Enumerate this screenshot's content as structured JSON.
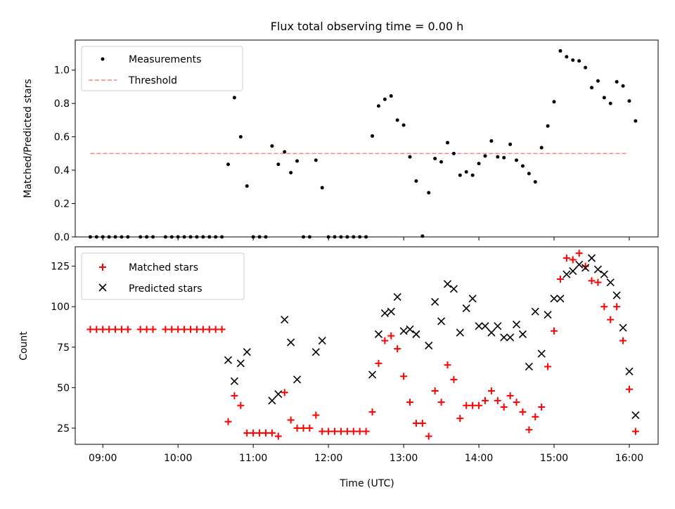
{
  "chart_data": [
    {
      "type": "scatter",
      "title": "Flux total observing time = 0.00 h",
      "xlabel": "",
      "ylabel": "Matched/Predicted stars",
      "xlim": [
        "08:38",
        "16:23"
      ],
      "ylim": [
        0.0,
        1.18
      ],
      "yticks": [
        0.0,
        0.2,
        0.4,
        0.6,
        0.8,
        1.0
      ],
      "grid": false,
      "legend": {
        "placement": "top-left",
        "entries": [
          "Measurements",
          "Threshold"
        ]
      },
      "threshold": {
        "name": "Threshold",
        "value": 0.5,
        "x_start": "08:50",
        "x_end": "15:58",
        "color": "#ff7f7f"
      },
      "series": [
        {
          "name": "Measurements",
          "color": "#000000",
          "points": [
            [
              "08:50",
              0
            ],
            [
              "08:55",
              0
            ],
            [
              "09:00",
              0
            ],
            [
              "09:05",
              0
            ],
            [
              "09:10",
              0
            ],
            [
              "09:15",
              0
            ],
            [
              "09:20",
              0
            ],
            [
              "09:30",
              0
            ],
            [
              "09:35",
              0
            ],
            [
              "09:40",
              0
            ],
            [
              "09:50",
              0
            ],
            [
              "09:55",
              0
            ],
            [
              "10:00",
              0
            ],
            [
              "10:05",
              0
            ],
            [
              "10:10",
              0
            ],
            [
              "10:15",
              0
            ],
            [
              "10:20",
              0
            ],
            [
              "10:25",
              0
            ],
            [
              "10:30",
              0
            ],
            [
              "10:35",
              0
            ],
            [
              "10:40",
              0.435
            ],
            [
              "10:45",
              0.835
            ],
            [
              "10:50",
              0.6
            ],
            [
              "10:55",
              0.305
            ],
            [
              "11:00",
              0
            ],
            [
              "11:05",
              0
            ],
            [
              "11:10",
              0
            ],
            [
              "11:15",
              0.545
            ],
            [
              "11:20",
              0.435
            ],
            [
              "11:25",
              0.51
            ],
            [
              "11:30",
              0.385
            ],
            [
              "11:35",
              0.455
            ],
            [
              "11:40",
              0
            ],
            [
              "11:45",
              0
            ],
            [
              "11:50",
              0.46
            ],
            [
              "11:55",
              0.295
            ],
            [
              "12:00",
              0
            ],
            [
              "12:05",
              0
            ],
            [
              "12:10",
              0
            ],
            [
              "12:15",
              0
            ],
            [
              "12:20",
              0
            ],
            [
              "12:25",
              0
            ],
            [
              "12:30",
              0
            ],
            [
              "12:35",
              0.605
            ],
            [
              "12:40",
              0.785
            ],
            [
              "12:45",
              0.825
            ],
            [
              "12:50",
              0.845
            ],
            [
              "12:55",
              0.7
            ],
            [
              "13:00",
              0.67
            ],
            [
              "13:05",
              0.48
            ],
            [
              "13:10",
              0.335
            ],
            [
              "13:15",
              0.005
            ],
            [
              "13:20",
              0.265
            ],
            [
              "13:25",
              0.47
            ],
            [
              "13:30",
              0.45
            ],
            [
              "13:35",
              0.565
            ],
            [
              "13:40",
              0.5
            ],
            [
              "13:45",
              0.37
            ],
            [
              "13:50",
              0.39
            ],
            [
              "13:55",
              0.37
            ],
            [
              "14:00",
              0.44
            ],
            [
              "14:05",
              0.485
            ],
            [
              "14:10",
              0.575
            ],
            [
              "14:15",
              0.48
            ],
            [
              "14:20",
              0.475
            ],
            [
              "14:25",
              0.555
            ],
            [
              "14:30",
              0.46
            ],
            [
              "14:35",
              0.425
            ],
            [
              "14:40",
              0.38
            ],
            [
              "14:45",
              0.33
            ],
            [
              "14:50",
              0.535
            ],
            [
              "14:55",
              0.665
            ],
            [
              "15:00",
              0.81
            ],
            [
              "15:05",
              1.115
            ],
            [
              "15:10",
              1.08
            ],
            [
              "15:15",
              1.06
            ],
            [
              "15:20",
              1.055
            ],
            [
              "15:25",
              1.015
            ],
            [
              "15:30",
              0.895
            ],
            [
              "15:35",
              0.935
            ],
            [
              "15:40",
              0.835
            ],
            [
              "15:45",
              0.8
            ],
            [
              "15:50",
              0.93
            ],
            [
              "15:55",
              0.905
            ],
            [
              "16:00",
              0.815
            ],
            [
              "16:05",
              0.695
            ]
          ]
        }
      ]
    },
    {
      "type": "scatter",
      "title": "",
      "xlabel": "Time (UTC)",
      "ylabel": "Count",
      "xlim": [
        "08:38",
        "16:23"
      ],
      "ylim": [
        15,
        137
      ],
      "yticks": [
        25,
        50,
        75,
        100,
        125
      ],
      "xticks": [
        "09:00",
        "10:00",
        "11:00",
        "12:00",
        "13:00",
        "14:00",
        "15:00",
        "16:00"
      ],
      "grid": false,
      "legend": {
        "placement": "top-left",
        "entries": [
          "Matched stars",
          "Predicted stars"
        ]
      },
      "series": [
        {
          "name": "Matched stars",
          "marker": "plus",
          "color": "#ff0000",
          "points": [
            [
              "08:50",
              86
            ],
            [
              "08:55",
              86
            ],
            [
              "09:00",
              86
            ],
            [
              "09:05",
              86
            ],
            [
              "09:10",
              86
            ],
            [
              "09:15",
              86
            ],
            [
              "09:20",
              86
            ],
            [
              "09:30",
              86
            ],
            [
              "09:35",
              86
            ],
            [
              "09:40",
              86
            ],
            [
              "09:50",
              86
            ],
            [
              "09:55",
              86
            ],
            [
              "10:00",
              86
            ],
            [
              "10:05",
              86
            ],
            [
              "10:10",
              86
            ],
            [
              "10:15",
              86
            ],
            [
              "10:20",
              86
            ],
            [
              "10:25",
              86
            ],
            [
              "10:30",
              86
            ],
            [
              "10:35",
              86
            ],
            [
              "10:40",
              29
            ],
            [
              "10:45",
              45
            ],
            [
              "10:50",
              39
            ],
            [
              "10:55",
              22
            ],
            [
              "11:00",
              22
            ],
            [
              "11:05",
              22
            ],
            [
              "11:10",
              22
            ],
            [
              "11:15",
              22
            ],
            [
              "11:20",
              20
            ],
            [
              "11:25",
              47
            ],
            [
              "11:30",
              30
            ],
            [
              "11:35",
              25
            ],
            [
              "11:40",
              25
            ],
            [
              "11:45",
              25
            ],
            [
              "11:50",
              33
            ],
            [
              "11:55",
              23
            ],
            [
              "12:00",
              23
            ],
            [
              "12:05",
              23
            ],
            [
              "12:10",
              23
            ],
            [
              "12:15",
              23
            ],
            [
              "12:20",
              23
            ],
            [
              "12:25",
              23
            ],
            [
              "12:30",
              23
            ],
            [
              "12:35",
              35
            ],
            [
              "12:40",
              65
            ],
            [
              "12:45",
              79
            ],
            [
              "12:50",
              82
            ],
            [
              "12:55",
              74
            ],
            [
              "13:00",
              57
            ],
            [
              "13:05",
              41
            ],
            [
              "13:10",
              28
            ],
            [
              "13:15",
              28
            ],
            [
              "13:20",
              20
            ],
            [
              "13:25",
              48
            ],
            [
              "13:30",
              41
            ],
            [
              "13:35",
              64
            ],
            [
              "13:40",
              55
            ],
            [
              "13:45",
              31
            ],
            [
              "13:50",
              39
            ],
            [
              "13:55",
              39
            ],
            [
              "14:00",
              39
            ],
            [
              "14:05",
              42
            ],
            [
              "14:10",
              48
            ],
            [
              "14:15",
              42
            ],
            [
              "14:20",
              38
            ],
            [
              "14:25",
              45
            ],
            [
              "14:30",
              41
            ],
            [
              "14:35",
              35
            ],
            [
              "14:40",
              24
            ],
            [
              "14:45",
              32
            ],
            [
              "14:50",
              38
            ],
            [
              "14:55",
              63
            ],
            [
              "15:00",
              85
            ],
            [
              "15:05",
              117
            ],
            [
              "15:10",
              130
            ],
            [
              "15:15",
              129
            ],
            [
              "15:20",
              133
            ],
            [
              "15:25",
              125
            ],
            [
              "15:30",
              116
            ],
            [
              "15:35",
              115
            ],
            [
              "15:40",
              100
            ],
            [
              "15:45",
              92
            ],
            [
              "15:50",
              100
            ],
            [
              "15:55",
              79
            ],
            [
              "16:00",
              49
            ],
            [
              "16:05",
              23
            ]
          ]
        },
        {
          "name": "Predicted stars",
          "marker": "x",
          "color": "#000000",
          "points": [
            [
              "10:40",
              67
            ],
            [
              "10:45",
              54
            ],
            [
              "10:50",
              65
            ],
            [
              "10:55",
              72
            ],
            [
              "11:15",
              42
            ],
            [
              "11:20",
              46
            ],
            [
              "11:25",
              92
            ],
            [
              "11:30",
              78
            ],
            [
              "11:35",
              55
            ],
            [
              "11:50",
              72
            ],
            [
              "11:55",
              79
            ],
            [
              "12:35",
              58
            ],
            [
              "12:40",
              83
            ],
            [
              "12:45",
              96
            ],
            [
              "12:50",
              97
            ],
            [
              "12:55",
              106
            ],
            [
              "13:00",
              85
            ],
            [
              "13:05",
              86
            ],
            [
              "13:10",
              83
            ],
            [
              "13:20",
              76
            ],
            [
              "13:25",
              103
            ],
            [
              "13:30",
              91
            ],
            [
              "13:35",
              114
            ],
            [
              "13:40",
              111
            ],
            [
              "13:45",
              84
            ],
            [
              "13:50",
              99
            ],
            [
              "13:55",
              105
            ],
            [
              "14:00",
              88
            ],
            [
              "14:05",
              88
            ],
            [
              "14:10",
              84
            ],
            [
              "14:15",
              88
            ],
            [
              "14:20",
              81
            ],
            [
              "14:25",
              81
            ],
            [
              "14:30",
              89
            ],
            [
              "14:35",
              83
            ],
            [
              "14:40",
              63
            ],
            [
              "14:45",
              97
            ],
            [
              "14:50",
              71
            ],
            [
              "14:55",
              95
            ],
            [
              "15:00",
              105
            ],
            [
              "15:05",
              105
            ],
            [
              "15:10",
              120
            ],
            [
              "15:15",
              122
            ],
            [
              "15:20",
              126
            ],
            [
              "15:25",
              124
            ],
            [
              "15:30",
              130
            ],
            [
              "15:35",
              123
            ],
            [
              "15:40",
              120
            ],
            [
              "15:45",
              115
            ],
            [
              "15:50",
              107
            ],
            [
              "15:55",
              87
            ],
            [
              "16:00",
              60
            ],
            [
              "16:05",
              33
            ]
          ]
        }
      ]
    }
  ]
}
